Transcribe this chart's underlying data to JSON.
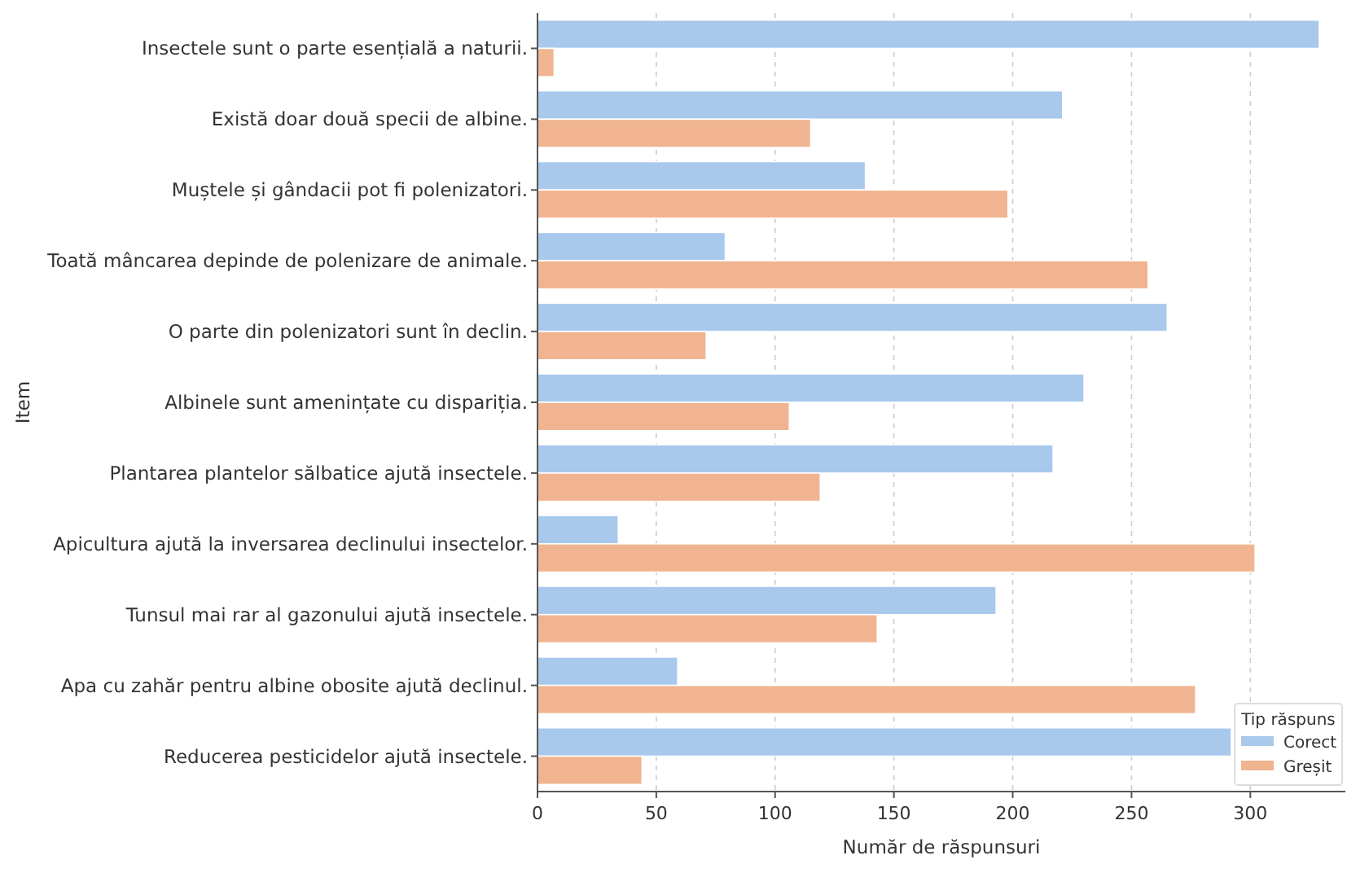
{
  "chart_data": {
    "type": "bar",
    "orientation": "horizontal",
    "xlabel": "Număr de răspunsuri",
    "ylabel": "Item",
    "legend_title": "Tip răspuns",
    "legend": "bottom right",
    "grid": "x",
    "categories": [
      "Insectele sunt o parte esențială a naturii.",
      "Există doar două specii de albine.",
      "Muștele și gândacii pot fi polenizatori.",
      "Toată mâncarea depinde de polenizare de animale.",
      "O parte din polenizatori sunt în declin.",
      "Albinele sunt amenințate cu dispariția.",
      "Plantarea plantelor sălbatice ajută insectele.",
      "Apicultura ajută la inversarea declinului insectelor.",
      "Tunsul mai rar al gazonului ajută insectele.",
      "Apa cu zahăr pentru albine obosite ajută declinul.",
      "Reducerea pesticidelor ajută insectele."
    ],
    "series": [
      {
        "name": "Corect",
        "color": "#a8c8ec",
        "values": [
          329,
          221,
          138,
          79,
          265,
          230,
          217,
          34,
          193,
          59,
          292
        ]
      },
      {
        "name": "Greșit",
        "color": "#f0b590",
        "values": [
          7,
          115,
          198,
          257,
          71,
          106,
          119,
          302,
          143,
          277,
          44
        ]
      }
    ],
    "xlim": [
      0,
      340
    ],
    "xticks": [
      0,
      50,
      100,
      150,
      200,
      250,
      300
    ]
  }
}
